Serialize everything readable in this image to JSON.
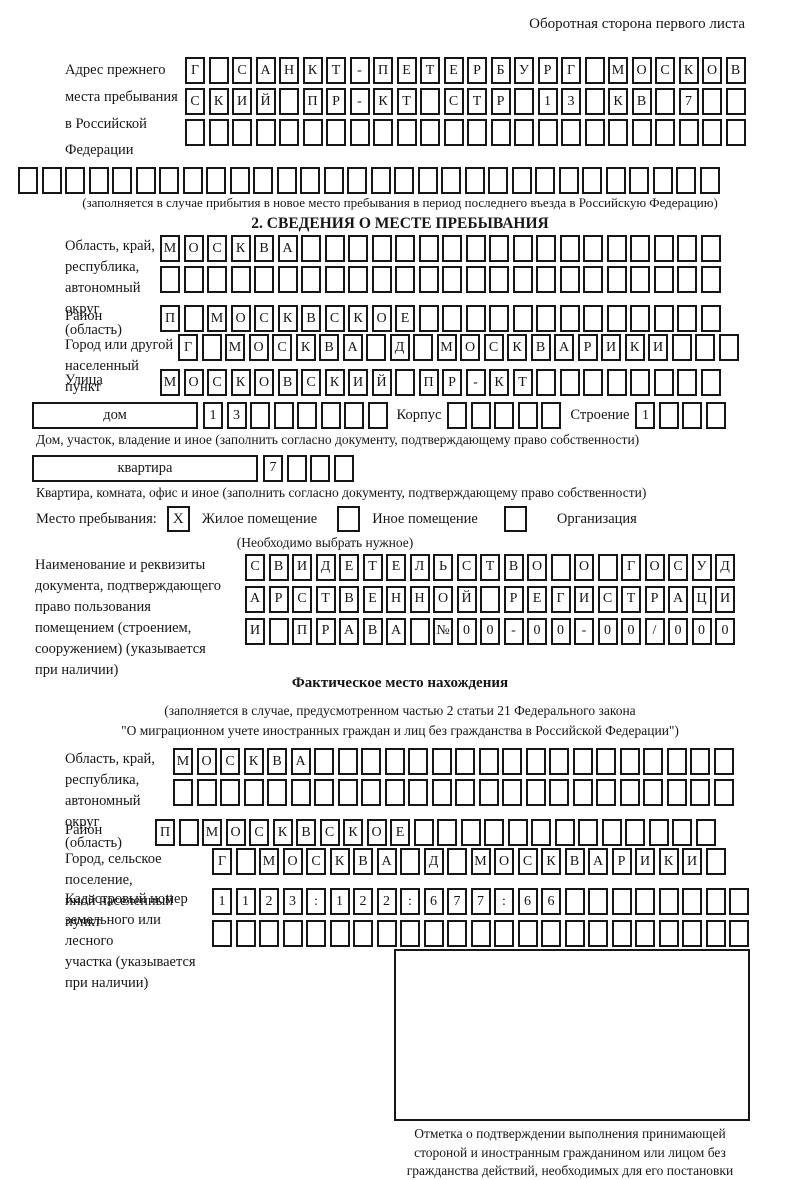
{
  "page": {
    "header_note": "Оборотная сторона первого листа"
  },
  "prev_address": {
    "label": "Адрес прежнего\nместа пребывания\nв Российской\nФедерации",
    "row1": "Г САНКТ-ПЕТЕРБУРГ МОСКОВ",
    "row2": "СКИЙ ПР-КТ СТР 13 КВ 7",
    "row3": "",
    "row4": "",
    "note": "(заполняется в случае прибытия в новое место пребывания в период последнего въезда в Российскую Федерацию)"
  },
  "section2": {
    "title": "2. СВЕДЕНИЯ О МЕСТЕ ПРЕБЫВАНИЯ",
    "oblast": {
      "label": "Область, край,\nреспублика,\nавтономный\nокруг (область)",
      "row1": "МОСКВА",
      "row2": ""
    },
    "raion": {
      "label": "Район",
      "row": "П МОСКВСКОЕ"
    },
    "gorod": {
      "label": "Город или другой\nнаселенный пункт",
      "row": "Г МОСКВА Д МОСКВАРИКИ"
    },
    "ulitsa": {
      "label": "Улица",
      "row": "МОСКОВСКИЙ ПР-КТ"
    },
    "dom": {
      "box_label": "дом",
      "cells": "13",
      "korpus_label": "Корпус",
      "korpus_cells": "",
      "stroenie_label": "Строение",
      "stroenie_cells": "1",
      "note": "Дом, участок, владение и иное (заполнить согласно документу, подтверждающему право собственности)"
    },
    "kvartira": {
      "box_label": "квартира",
      "cells": "7",
      "note": "Квартира, комната, офис и иное (заполнить согласно документу, подтверждающему право собственности)"
    },
    "stay": {
      "label": "Место пребывания:",
      "options": [
        {
          "mark": "X",
          "label": "Жилое помещение"
        },
        {
          "mark": "",
          "label": "Иное помещение"
        },
        {
          "mark": "",
          "label": "Организация"
        }
      ],
      "note": "(Необходимо выбрать нужное)"
    },
    "doc": {
      "label": "Наименование и реквизиты\nдокумента, подтверждающего\nправо пользования\nпомещением (строением,\nсооружением) (указывается\nпри наличии)",
      "row1": "СВИДЕТЕЛЬСТВО О ГОСУД",
      "row2": "АРСТВЕННОЙ РЕГИСТРАЦИ",
      "row3": "И ПРАВА №00-00-00/000"
    }
  },
  "fact": {
    "title": "Фактическое место нахождения",
    "note": "(заполняется в случае, предусмотренном частью 2 статьи 21 Федерального закона\n\"О миграционном учете иностранных граждан и лиц без гражданства в Российской Федерации\")",
    "oblast": {
      "label": "Область, край,\nреспублика,\nавтономный округ\n(область)",
      "row1": "МОСКВА",
      "row2": ""
    },
    "raion": {
      "label": "Район",
      "row": "П МОСКВСКОЕ"
    },
    "gorod": {
      "label": "Город, сельское поселение,\nиной населенный пункт",
      "row": "Г МОСКВА Д МОСКВАРИКИ"
    },
    "cadastre": {
      "label": "Кадастровый номер\nземельного или лесного\nучастка (указывается\nпри наличии)",
      "row1": "1123:122:677:66",
      "row2": ""
    },
    "stamp_note": "Отметка о подтверждении выполнения принимающей\nстороной и иностранным гражданином или лицом без\nгражданства действий, необходимых для его постановки\nна учет по месту пребывания"
  }
}
